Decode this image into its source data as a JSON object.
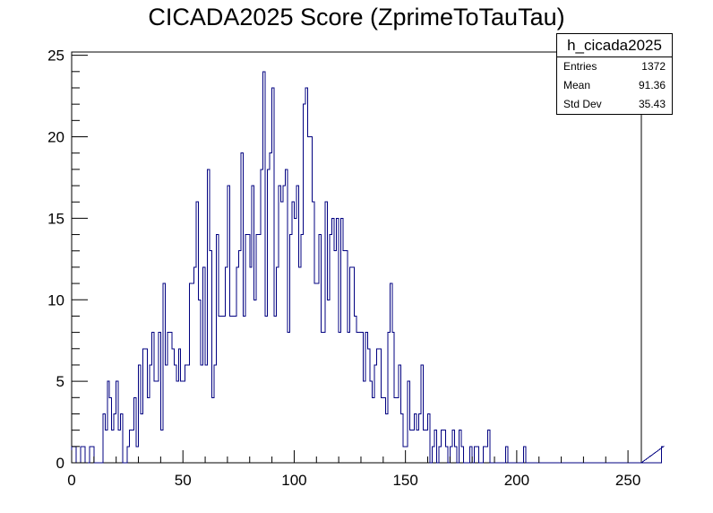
{
  "chart_data": {
    "type": "bar",
    "title": "CICADA2025 Score (ZprimeToTauTau)",
    "xlabel": "",
    "ylabel": "",
    "xlim": [
      0,
      256
    ],
    "ylim": [
      0,
      25.2
    ],
    "bin_width": 1,
    "x_ticks": [
      0,
      50,
      100,
      150,
      200,
      250
    ],
    "y_ticks": [
      0,
      5,
      10,
      15,
      20,
      25
    ],
    "line_color": "#000080",
    "stats": {
      "name": "h_cicada2025",
      "rows": [
        {
          "label": "Entries",
          "value": "1372"
        },
        {
          "label": "Mean",
          "value": "91.36"
        },
        {
          "label": "Std Dev",
          "value": "35.43"
        }
      ]
    },
    "values": [
      1,
      1,
      0,
      0,
      1,
      1,
      0,
      0,
      1,
      1,
      0,
      0,
      0,
      0,
      3,
      2,
      5,
      4,
      2,
      3,
      5,
      2,
      3,
      0,
      0,
      1,
      2,
      2,
      4,
      1,
      6,
      3,
      7,
      7,
      4,
      6,
      8,
      5,
      5,
      8,
      2,
      11,
      6,
      8,
      8,
      7,
      6,
      5,
      7,
      5,
      5,
      6,
      6,
      11,
      11,
      12,
      16,
      10,
      6,
      12,
      6,
      18,
      13,
      4,
      6,
      14,
      9,
      9,
      9,
      12,
      17,
      9,
      9,
      9,
      12,
      13,
      19,
      9,
      14,
      14,
      12,
      17,
      10,
      14,
      14,
      18,
      24,
      9,
      18,
      19,
      23,
      9,
      12,
      17,
      16,
      17,
      18,
      8,
      14,
      16,
      15,
      17,
      12,
      14,
      22,
      23,
      20,
      20,
      16,
      11,
      11,
      14,
      8,
      8,
      16,
      10,
      14,
      15,
      13,
      15,
      8,
      15,
      13,
      13,
      8,
      12,
      12,
      9,
      8,
      8,
      8,
      5,
      8,
      7,
      5,
      4,
      6,
      7,
      7,
      4,
      4,
      3,
      8,
      11,
      8,
      4,
      4,
      6,
      3,
      1,
      1,
      5,
      2,
      2,
      3,
      2,
      3,
      6,
      2,
      2,
      3,
      0,
      1,
      2,
      0,
      1,
      2,
      2,
      1,
      0,
      1,
      2,
      1,
      0,
      2,
      1,
      0,
      0,
      0,
      1,
      0,
      1,
      1,
      0,
      0,
      1,
      1,
      2,
      0,
      0,
      0,
      0,
      0,
      0,
      0,
      1,
      0,
      0,
      0,
      0,
      0,
      0,
      0,
      1,
      0,
      0,
      0,
      0,
      0,
      0,
      0,
      0,
      0,
      0,
      0,
      0,
      0,
      0,
      0,
      0,
      0,
      0,
      0,
      0,
      0,
      0,
      0,
      0,
      0,
      0,
      0,
      0,
      0,
      0,
      0,
      0,
      0,
      0,
      0,
      0,
      0,
      0,
      0,
      0,
      0,
      0,
      0,
      0,
      0,
      0,
      0,
      0,
      0,
      0,
      0,
      0,
      0,
      0,
      0,
      0,
      0,
      0,
      0,
      0,
      0,
      1
    ]
  }
}
